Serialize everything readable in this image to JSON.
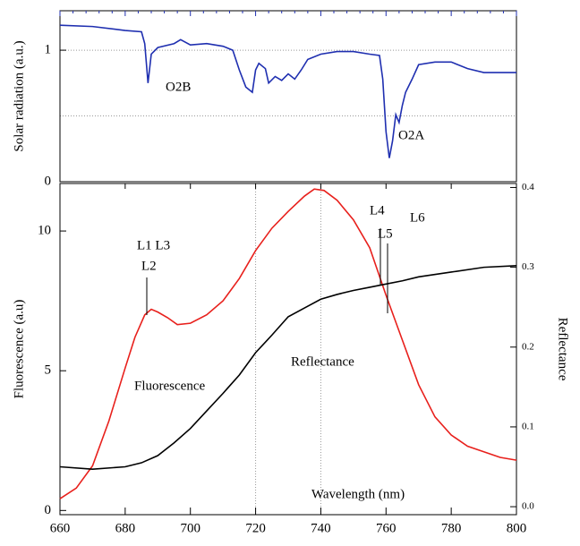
{
  "chart_data": [
    {
      "type": "line",
      "y_label": "Solar radiation (a.u.)",
      "xlim": [
        660,
        800
      ],
      "ylim": [
        0,
        1.3
      ],
      "yticks": [
        0,
        1
      ],
      "ygrid": [
        0.5,
        1
      ],
      "annotations": [
        "O2B",
        "O2A"
      ],
      "series": [
        {
          "color": "#1f2fb0",
          "x": [
            660,
            670,
            680,
            685,
            686,
            687,
            688,
            690,
            695,
            697,
            700,
            705,
            710,
            713,
            715,
            717,
            719,
            720,
            721,
            723,
            724,
            726,
            728,
            730,
            732,
            734,
            736,
            740,
            745,
            750,
            755,
            758,
            759,
            760,
            761,
            762,
            763,
            764,
            765,
            766,
            768,
            770,
            775,
            780,
            785,
            790,
            795,
            800
          ],
          "values": [
            1.19,
            1.18,
            1.15,
            1.14,
            1.05,
            0.75,
            0.97,
            1.02,
            1.05,
            1.08,
            1.04,
            1.05,
            1.03,
            1.0,
            0.85,
            0.72,
            0.68,
            0.85,
            0.9,
            0.86,
            0.75,
            0.8,
            0.77,
            0.82,
            0.78,
            0.85,
            0.93,
            0.97,
            0.99,
            0.99,
            0.97,
            0.96,
            0.78,
            0.38,
            0.18,
            0.31,
            0.51,
            0.45,
            0.58,
            0.68,
            0.78,
            0.89,
            0.91,
            0.91,
            0.86,
            0.83,
            0.83,
            0.83
          ]
        }
      ]
    },
    {
      "type": "line",
      "x_label": "Wavelength (nm)",
      "y_label": "Fluorescence (a.u)",
      "y2_label": "Reflectance",
      "xlim": [
        660,
        800
      ],
      "xticks": [
        660,
        680,
        700,
        720,
        740,
        760,
        780,
        800
      ],
      "xgrid": [
        720,
        740
      ],
      "ylim": [
        -0.15,
        11.7
      ],
      "yticks": [
        0,
        5,
        10
      ],
      "y2lim": [
        -0.01,
        0.405
      ],
      "y2ticks": [
        {
          "value": 0,
          "label": "0.0"
        },
        0.1,
        0.2,
        0.3,
        0.4
      ],
      "annotations": [
        "L1 L3",
        "L2",
        "L4",
        "L5",
        "L6"
      ],
      "series": [
        {
          "name": "Fluorescence",
          "color": "#e8201c",
          "x": [
            660,
            665,
            670,
            675,
            680,
            683,
            686,
            688,
            690,
            693,
            696,
            700,
            705,
            710,
            715,
            720,
            725,
            730,
            735,
            738,
            741,
            745,
            750,
            755,
            760,
            765,
            770,
            775,
            780,
            785,
            790,
            795,
            800
          ],
          "values": [
            0.42,
            0.8,
            1.6,
            3.2,
            5.1,
            6.2,
            7.0,
            7.2,
            7.1,
            6.9,
            6.65,
            6.7,
            7.0,
            7.5,
            8.3,
            9.3,
            10.1,
            10.7,
            11.25,
            11.5,
            11.45,
            11.1,
            10.4,
            9.4,
            7.7,
            6.1,
            4.5,
            3.35,
            2.7,
            2.3,
            2.1,
            1.9,
            1.8
          ]
        },
        {
          "name": "Reflectance",
          "color": "#000000",
          "axis": "y2",
          "x": [
            660,
            670,
            680,
            685,
            690,
            695,
            700,
            705,
            710,
            715,
            720,
            725,
            730,
            735,
            740,
            745,
            750,
            755,
            760,
            765,
            770,
            780,
            790,
            800
          ],
          "values": [
            0.05,
            0.047,
            0.05,
            0.055,
            0.064,
            0.08,
            0.098,
            0.12,
            0.142,
            0.165,
            0.193,
            0.215,
            0.238,
            0.249,
            0.26,
            0.266,
            0.271,
            0.275,
            0.279,
            0.283,
            0.288,
            0.294,
            0.3,
            0.302
          ]
        }
      ]
    }
  ]
}
